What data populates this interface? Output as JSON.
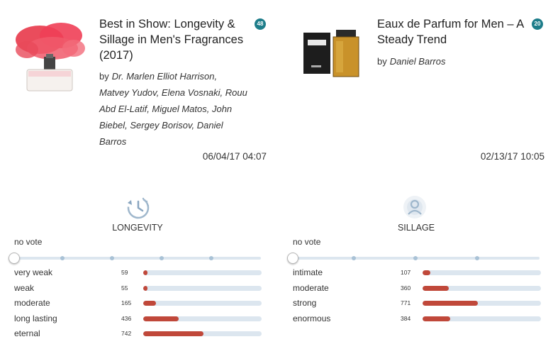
{
  "articles": [
    {
      "title": "Best in Show: Longevity & Sillage in Men's Fragrances (2017)",
      "comment_count": "48",
      "by_label": "by",
      "authors": "Dr. Marlen Elliot Harrison, Matvey Yudov, Elena Vosnaki, Rouu Abd El-Latif, Miguel Matos, John Biebel, Sergey Borisov, Daniel Barros",
      "date": "06/04/17 04:07"
    },
    {
      "title": "Eaux de Parfum for Men – A Steady Trend",
      "comment_count": "20",
      "by_label": "by",
      "authors": "Daniel Barros",
      "date": "02/13/17 10:05"
    }
  ],
  "panels": [
    {
      "label": "LONGEVITY",
      "icon": "clock-icon",
      "no_vote": "no vote",
      "rows": [
        {
          "label": "very weak",
          "count": "59",
          "fill": 0.035
        },
        {
          "label": "weak",
          "count": "55",
          "fill": 0.035
        },
        {
          "label": "moderate",
          "count": "165",
          "fill": 0.11
        },
        {
          "label": "long lasting",
          "count": "436",
          "fill": 0.3
        },
        {
          "label": "eternal",
          "count": "742",
          "fill": 0.51
        }
      ]
    },
    {
      "label": "SILLAGE",
      "icon": "sillage-icon",
      "no_vote": "no vote",
      "rows": [
        {
          "label": "intimate",
          "count": "107",
          "fill": 0.065
        },
        {
          "label": "moderate",
          "count": "360",
          "fill": 0.22
        },
        {
          "label": "strong",
          "count": "771",
          "fill": 0.47
        },
        {
          "label": "enormous",
          "count": "384",
          "fill": 0.235
        }
      ]
    }
  ],
  "colors": {
    "accent": "#1e7d8a",
    "bar_fill": "#c0483a",
    "bar_track": "#dce6ef"
  }
}
